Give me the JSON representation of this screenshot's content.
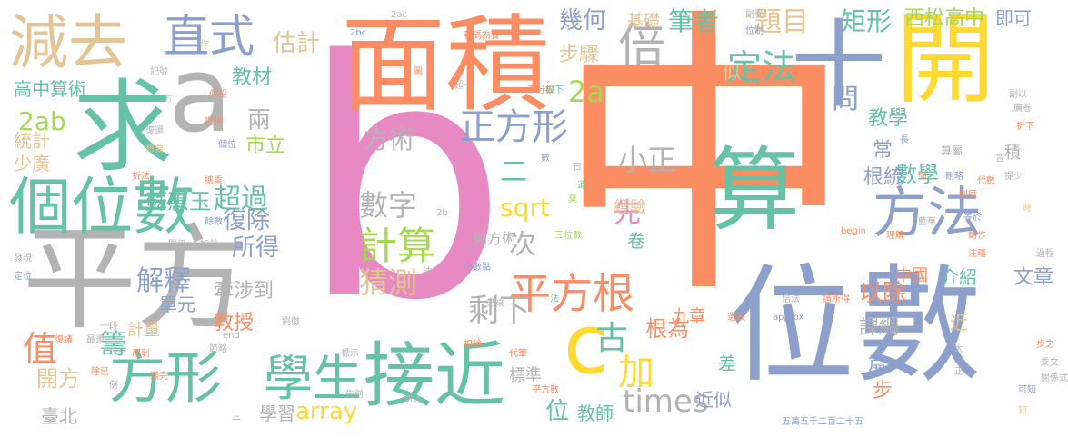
{
  "palette": {
    "green": "#66c2a5",
    "orange": "#fc8d62",
    "blue": "#8da0cb",
    "pink": "#e78ac3",
    "lime": "#a6d854",
    "yellow": "#ffd92f",
    "tan": "#e5c494",
    "gray": "#b3b3b3"
  },
  "words": [
    {
      "text": "b",
      "color": "pink",
      "rotated": false
    },
    {
      "text": "中",
      "color": "orange",
      "rotated": false
    },
    {
      "text": "平方",
      "color": "gray",
      "rotated": false
    },
    {
      "text": "位數",
      "color": "blue",
      "rotated": false
    },
    {
      "text": "面積",
      "color": "orange",
      "rotated": false
    },
    {
      "text": "a",
      "color": "gray",
      "rotated": false
    },
    {
      "text": "開",
      "color": "yellow",
      "rotated": false
    },
    {
      "text": "求",
      "color": "green",
      "rotated": false
    },
    {
      "text": "算",
      "color": "green",
      "rotated": false
    },
    {
      "text": "十",
      "color": "blue",
      "rotated": false
    },
    {
      "text": "個位數",
      "color": "green",
      "rotated": false
    },
    {
      "text": "方法",
      "color": "blue",
      "rotated": false
    },
    {
      "text": "接近",
      "color": "green",
      "rotated": false
    },
    {
      "text": "方形",
      "color": "green",
      "rotated": false
    },
    {
      "text": "減去",
      "color": "tan",
      "rotated": false
    },
    {
      "text": "直式",
      "color": "blue",
      "rotated": false
    },
    {
      "text": "倍",
      "color": "gray",
      "rotated": false
    },
    {
      "text": "c",
      "color": "yellow",
      "rotated": false
    },
    {
      "text": "學生",
      "color": "green",
      "rotated": false
    },
    {
      "text": "平方根",
      "color": "orange",
      "rotated": false
    },
    {
      "text": "計算",
      "color": "lime",
      "rotated": false
    },
    {
      "text": "正方形",
      "color": "blue",
      "rotated": false
    },
    {
      "text": "定法",
      "color": "green",
      "rotated": false
    },
    {
      "text": "數字",
      "color": "gray",
      "rotated": false
    },
    {
      "text": "猜測",
      "color": "tan",
      "rotated": false
    },
    {
      "text": "小正",
      "color": "gray",
      "rotated": false
    },
    {
      "text": "超過",
      "color": "green",
      "rotated": false
    },
    {
      "text": "題目",
      "color": "tan",
      "rotated": false
    },
    {
      "text": "問",
      "color": "blue",
      "rotated": false
    },
    {
      "text": "2a",
      "color": "lime",
      "rotated": false
    },
    {
      "text": "先",
      "color": "pink",
      "rotated": false
    },
    {
      "text": "二",
      "color": "green",
      "rotated": false
    },
    {
      "text": "加",
      "color": "yellow",
      "rotated": false
    },
    {
      "text": "古",
      "color": "green",
      "rotated": false
    },
    {
      "text": "times",
      "color": "gray",
      "rotated": false
    },
    {
      "text": "array",
      "color": "yellow",
      "rotated": false
    },
    {
      "text": "sqrt",
      "color": "yellow",
      "rotated": false
    },
    {
      "text": "剩下",
      "color": "gray",
      "rotated": false
    },
    {
      "text": "方術",
      "color": "gray",
      "rotated": false
    },
    {
      "text": "筆者",
      "color": "green",
      "rotated": false
    },
    {
      "text": "幾何",
      "color": "blue",
      "rotated": false
    },
    {
      "text": "估計",
      "color": "tan",
      "rotated": false
    },
    {
      "text": "基礎",
      "color": "tan",
      "rotated": false
    },
    {
      "text": "矩形",
      "color": "green",
      "rotated": false
    },
    {
      "text": "西松高中",
      "color": "lime",
      "rotated": false
    },
    {
      "text": "即可",
      "color": "blue",
      "rotated": false
    },
    {
      "text": "步驟",
      "color": "tan",
      "rotated": false
    },
    {
      "text": "根為",
      "color": "orange",
      "rotated": false
    },
    {
      "text": "以除",
      "color": "orange",
      "rotated": false
    },
    {
      "text": "數學",
      "color": "green",
      "rotated": false
    },
    {
      "text": "根統",
      "color": "blue",
      "rotated": false
    },
    {
      "text": "常",
      "color": "blue",
      "rotated": false
    },
    {
      "text": "教學",
      "color": "green",
      "rotated": false
    },
    {
      "text": "積",
      "color": "gray",
      "rotated": false
    },
    {
      "text": "中國",
      "color": "orange",
      "rotated": false
    },
    {
      "text": "介紹",
      "color": "green",
      "rotated": false
    },
    {
      "text": "文章",
      "color": "blue",
      "rotated": false
    },
    {
      "text": "課綱",
      "color": "gray",
      "rotated": false
    },
    {
      "text": "篇",
      "color": "blue",
      "rotated": false
    },
    {
      "text": "步",
      "color": "orange",
      "rotated": false
    },
    {
      "text": "近",
      "color": "tan",
      "rotated": false
    },
    {
      "text": "近似",
      "color": "blue",
      "rotated": false
    },
    {
      "text": "差",
      "color": "green",
      "rotated": false
    },
    {
      "text": "九章",
      "color": "orange",
      "rotated": false
    },
    {
      "text": "標準",
      "color": "gray",
      "rotated": false
    },
    {
      "text": "位",
      "color": "green",
      "rotated": false
    },
    {
      "text": "教師",
      "color": "green",
      "rotated": false
    },
    {
      "text": "次",
      "color": "gray",
      "rotated": false
    },
    {
      "text": "解釋",
      "color": "blue",
      "rotated": false
    },
    {
      "text": "單元",
      "color": "blue",
      "rotated": false
    },
    {
      "text": "計量",
      "color": "tan",
      "rotated": false
    },
    {
      "text": "籌",
      "color": "green",
      "rotated": false
    },
    {
      "text": "教授",
      "color": "orange",
      "rotated": false
    },
    {
      "text": "牽涉到",
      "color": "gray",
      "rotated": false
    },
    {
      "text": "所得",
      "color": "blue",
      "rotated": false
    },
    {
      "text": "復除",
      "color": "blue",
      "rotated": false
    },
    {
      "text": "蘇惠玉",
      "color": "green",
      "rotated": false
    },
    {
      "text": "市立",
      "color": "lime",
      "rotated": false
    },
    {
      "text": "兩",
      "color": "gray",
      "rotated": false
    },
    {
      "text": "教材",
      "color": "green",
      "rotated": false
    },
    {
      "text": "高中",
      "color": "green",
      "rotated": false
    },
    {
      "text": "算術",
      "color": "green",
      "rotated": false
    },
    {
      "text": "2ab",
      "color": "lime",
      "rotated": false
    },
    {
      "text": "統計",
      "color": "tan",
      "rotated": false
    },
    {
      "text": "少廣",
      "color": "tan",
      "rotated": false
    },
    {
      "text": "值",
      "color": "orange",
      "rotated": false
    },
    {
      "text": "開方",
      "color": "tan",
      "rotated": false
    },
    {
      "text": "臺北",
      "color": "gray",
      "rotated": false
    },
    {
      "text": "學習",
      "color": "gray",
      "rotated": false
    },
    {
      "text": "卷",
      "color": "green",
      "rotated": false
    },
    {
      "text": "經驗",
      "color": "tan",
      "rotated": false
    },
    {
      "text": "開方術",
      "color": "gray",
      "rotated": false
    },
    {
      "text": "似",
      "color": "tan",
      "rotated": false
    },
    {
      "text": "2ac",
      "color": "gray",
      "rotated": false
    },
    {
      "text": "2bc",
      "color": "blue",
      "rotated": false
    },
    {
      "text": "記號",
      "color": "gray",
      "rotated": false
    },
    {
      "text": "作",
      "color": "tan",
      "rotated": false
    },
    {
      "text": "蕃碼為實",
      "color": "orange",
      "rotated": false
    },
    {
      "text": "圖",
      "color": "orange",
      "rotated": false
    },
    {
      "text": "超一",
      "color": "gray",
      "rotated": false
    },
    {
      "text": "平分根",
      "color": "orange",
      "rotated": false
    },
    {
      "text": "設下",
      "color": "green",
      "rotated": false
    },
    {
      "text": "副從",
      "color": "gray",
      "rotated": false
    },
    {
      "text": "位制",
      "color": "blue",
      "rotated": false
    },
    {
      "text": "副以",
      "color": "gray",
      "rotated": false
    },
    {
      "text": "廣卷",
      "color": "gray",
      "rotated": false
    },
    {
      "text": "折下",
      "color": "orange",
      "rotated": false
    },
    {
      "text": "長",
      "color": "blue",
      "rotated": false
    },
    {
      "text": "方",
      "color": "tan",
      "rotated": false
    },
    {
      "text": "假設",
      "color": "orange",
      "rotated": false
    },
    {
      "text": "提供",
      "color": "orange",
      "rotated": false
    },
    {
      "text": "復還",
      "color": "gray",
      "rotated": false
    },
    {
      "text": "想要",
      "color": "tan",
      "rotated": false
    },
    {
      "text": "個位",
      "color": "blue",
      "rotated": false
    },
    {
      "text": "折法",
      "color": "orange",
      "rotated": false
    },
    {
      "text": "攜乘",
      "color": "orange",
      "rotated": false
    },
    {
      "text": "數",
      "color": "blue",
      "rotated": false
    },
    {
      "text": "日",
      "color": "gray",
      "rotated": false
    },
    {
      "text": "道",
      "color": "green",
      "rotated": false
    },
    {
      "text": "莫",
      "color": "lime",
      "rotated": false
    },
    {
      "text": "算屬",
      "color": "gray",
      "rotated": false
    },
    {
      "text": "言",
      "color": "gray",
      "rotated": false
    },
    {
      "text": "倫",
      "color": "orange",
      "rotated": false
    },
    {
      "text": "刪略",
      "color": "blue",
      "rotated": false
    },
    {
      "text": "代數",
      "color": "orange",
      "rotated": false
    },
    {
      "text": "提少",
      "color": "gray",
      "rotated": false
    },
    {
      "text": "創度",
      "color": "orange",
      "rotated": false
    },
    {
      "text": "等於",
      "color": "blue",
      "rotated": false
    },
    {
      "text": "時",
      "color": "tan",
      "rotated": false
    },
    {
      "text": "藍華",
      "color": "gray",
      "rotated": false
    },
    {
      "text": "餘數",
      "color": "blue",
      "rotated": false
    },
    {
      "text": "2b",
      "color": "gray",
      "rotated": false
    },
    {
      "text": "三位數",
      "color": "lime",
      "rotated": false
    },
    {
      "text": "begin",
      "color": "orange",
      "rotated": false
    },
    {
      "text": "理解",
      "color": "orange",
      "rotated": false
    },
    {
      "text": "動作",
      "color": "orange",
      "rotated": false
    },
    {
      "text": "注暗",
      "color": "orange",
      "rotated": false
    },
    {
      "text": "過程",
      "color": "gray",
      "rotated": false
    },
    {
      "text": "關係",
      "color": "gray",
      "rotated": false
    },
    {
      "text": "如前",
      "color": "gray",
      "rotated": false
    },
    {
      "text": "發現",
      "color": "gray",
      "rotated": false
    },
    {
      "text": "定位",
      "color": "blue",
      "rotated": false
    },
    {
      "text": "小數點",
      "color": "blue",
      "rotated": false
    },
    {
      "text": "法",
      "color": "gray",
      "rotated": false
    },
    {
      "text": "法",
      "color": "green",
      "rotated": false
    },
    {
      "text": "譜所得",
      "color": "orange",
      "rotated": false
    },
    {
      "text": "倍法",
      "color": "gray",
      "rotated": false
    },
    {
      "text": "approx",
      "color": "blue",
      "rotated": false
    },
    {
      "text": "帶來",
      "color": "gray",
      "rotated": false
    },
    {
      "text": "選長",
      "color": "orange",
      "rotated": false
    },
    {
      "text": "步之",
      "color": "orange",
      "rotated": false
    },
    {
      "text": "一段",
      "color": "gray",
      "rotated": false
    },
    {
      "text": "劉徽",
      "color": "gray",
      "rotated": false
    },
    {
      "text": "最還",
      "color": "gray",
      "rotated": false
    },
    {
      "text": "復議",
      "color": "orange",
      "rotated": false
    },
    {
      "text": "end",
      "color": "gray",
      "rotated": false
    },
    {
      "text": "大",
      "color": "gray",
      "rotated": false
    },
    {
      "text": "用剝",
      "color": "orange",
      "rotated": false
    },
    {
      "text": "節略",
      "color": "gray",
      "rotated": false
    },
    {
      "text": "標示",
      "color": "gray",
      "rotated": false
    },
    {
      "text": "扣除",
      "color": "orange",
      "rotated": false
    },
    {
      "text": "代筆",
      "color": "orange",
      "rotated": false
    },
    {
      "text": "正",
      "color": "gray",
      "rotated": false
    },
    {
      "text": "可知",
      "color": "blue",
      "rotated": false
    },
    {
      "text": "乘文",
      "color": "gray",
      "rotated": false
    },
    {
      "text": "關係式",
      "color": "gray",
      "rotated": false
    },
    {
      "text": "知",
      "color": "tan",
      "rotated": false
    },
    {
      "text": "除已",
      "color": "orange",
      "rotated": false
    },
    {
      "text": "例",
      "color": "gray",
      "rotated": false
    },
    {
      "text": "滿完",
      "color": "orange",
      "rotated": false
    },
    {
      "text": "三",
      "color": "gray",
      "rotated": false
    },
    {
      "text": "先前",
      "color": "gray",
      "rotated": false
    },
    {
      "text": "併入",
      "color": "gray",
      "rotated": false
    },
    {
      "text": "平方數",
      "color": "orange",
      "rotated": false
    },
    {
      "text": "五萬五千二百二十五",
      "color": "blue",
      "rotated": false
    }
  ]
}
